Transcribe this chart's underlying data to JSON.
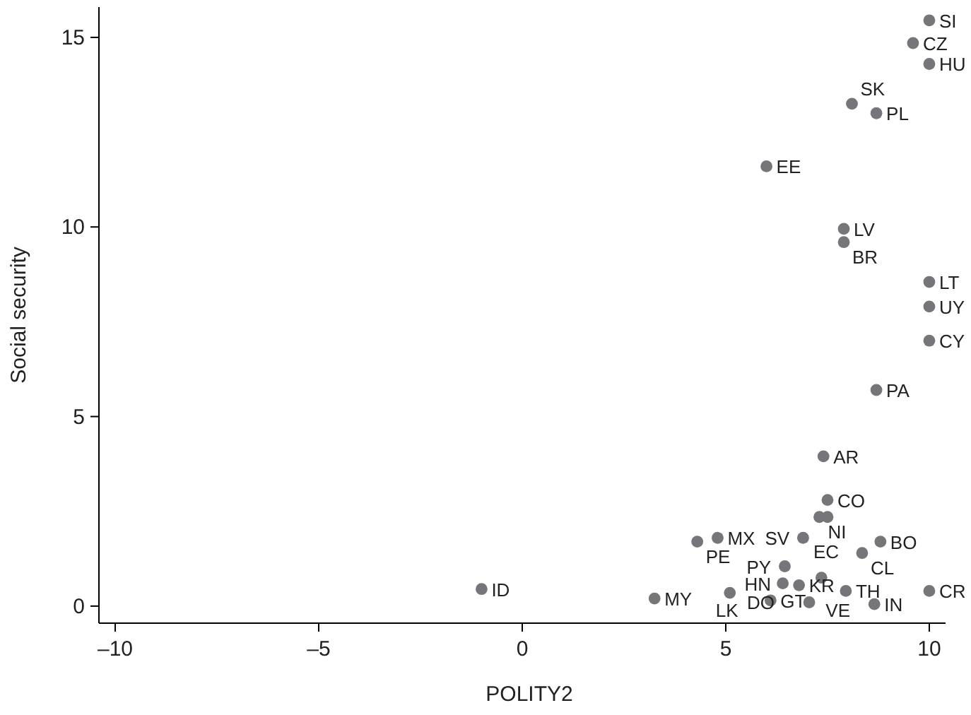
{
  "chart_data": {
    "type": "scatter",
    "xlabel": "POLITY2",
    "ylabel": "Social security",
    "xlim": [
      -10.4,
      10.4
    ],
    "ylim": [
      -0.45,
      15.8
    ],
    "xticks": [
      {
        "value": -10,
        "label": "–10"
      },
      {
        "value": -5,
        "label": "–5"
      },
      0,
      5,
      10
    ],
    "yticks": [
      0,
      5,
      10,
      15
    ],
    "grid": false,
    "marker": "circle",
    "series": [
      {
        "color": "#76767a",
        "x": [
          10,
          9.6,
          10,
          8.1,
          8.7,
          6,
          7.9,
          7.9,
          10,
          10,
          10,
          8.7,
          7.4,
          7.5,
          7.3,
          7.5,
          8.8,
          8.35,
          4.8,
          4.3,
          6.9,
          6.45,
          6.4,
          6.8,
          7.35,
          7.95,
          3.25,
          5.1,
          6.1,
          7.05,
          8.65,
          10,
          -1
        ],
        "values": [
          15.45,
          14.85,
          14.3,
          13.25,
          13,
          11.6,
          9.95,
          9.6,
          8.55,
          7.9,
          7,
          5.7,
          3.95,
          2.8,
          2.35,
          2.35,
          1.7,
          1.4,
          1.8,
          1.7,
          1.8,
          1.05,
          0.6,
          0.55,
          0.75,
          0.4,
          0.2,
          0.35,
          0.15,
          0.1,
          0.05,
          0.4,
          0.45
        ]
      }
    ],
    "annotations": [
      {
        "text": "SI",
        "x": 10,
        "y": 15.45
      },
      {
        "text": "CZ",
        "x": 9.6,
        "y": 14.85
      },
      {
        "text": "HU",
        "x": 10,
        "y": 14.3
      },
      {
        "text": "SK",
        "x": 8.1,
        "y": 13.25
      },
      {
        "text": "PL",
        "x": 8.7,
        "y": 13
      },
      {
        "text": "EE",
        "x": 6,
        "y": 11.6
      },
      {
        "text": "LV",
        "x": 7.9,
        "y": 9.95
      },
      {
        "text": "BR",
        "x": 7.9,
        "y": 9.6
      },
      {
        "text": "LT",
        "x": 10,
        "y": 8.55
      },
      {
        "text": "UY",
        "x": 10,
        "y": 7.9
      },
      {
        "text": "CY",
        "x": 10,
        "y": 7
      },
      {
        "text": "PA",
        "x": 8.7,
        "y": 5.7
      },
      {
        "text": "AR",
        "x": 7.4,
        "y": 3.95
      },
      {
        "text": "CO",
        "x": 7.5,
        "y": 2.8
      },
      {
        "text": "NI",
        "x": 7.3,
        "y": 2.35
      },
      {
        "text": "EC",
        "x": 7.5,
        "y": 2.35
      },
      {
        "text": "BO",
        "x": 8.8,
        "y": 1.7
      },
      {
        "text": "CL",
        "x": 8.35,
        "y": 1.4
      },
      {
        "text": "MX",
        "x": 4.8,
        "y": 1.8
      },
      {
        "text": "PE",
        "x": 4.3,
        "y": 1.7
      },
      {
        "text": "SV",
        "x": 6.9,
        "y": 1.8
      },
      {
        "text": "PY",
        "x": 6.45,
        "y": 1.05
      },
      {
        "text": "HN",
        "x": 6.4,
        "y": 0.6
      },
      {
        "text": "KR",
        "x": 6.8,
        "y": 0.55
      },
      {
        "text": "VE",
        "x": 7.35,
        "y": 0.75
      },
      {
        "text": "TH",
        "x": 7.95,
        "y": 0.4
      },
      {
        "text": "MY",
        "x": 3.25,
        "y": 0.2
      },
      {
        "text": "LK",
        "x": 5.1,
        "y": 0.35
      },
      {
        "text": "GT",
        "x": 6.1,
        "y": 0.15
      },
      {
        "text": "DO",
        "x": 7.05,
        "y": 0.1
      },
      {
        "text": "IN",
        "x": 8.65,
        "y": 0.05
      },
      {
        "text": "CR",
        "x": 10,
        "y": 0.4
      },
      {
        "text": "ID",
        "x": -1,
        "y": 0.45
      }
    ]
  }
}
